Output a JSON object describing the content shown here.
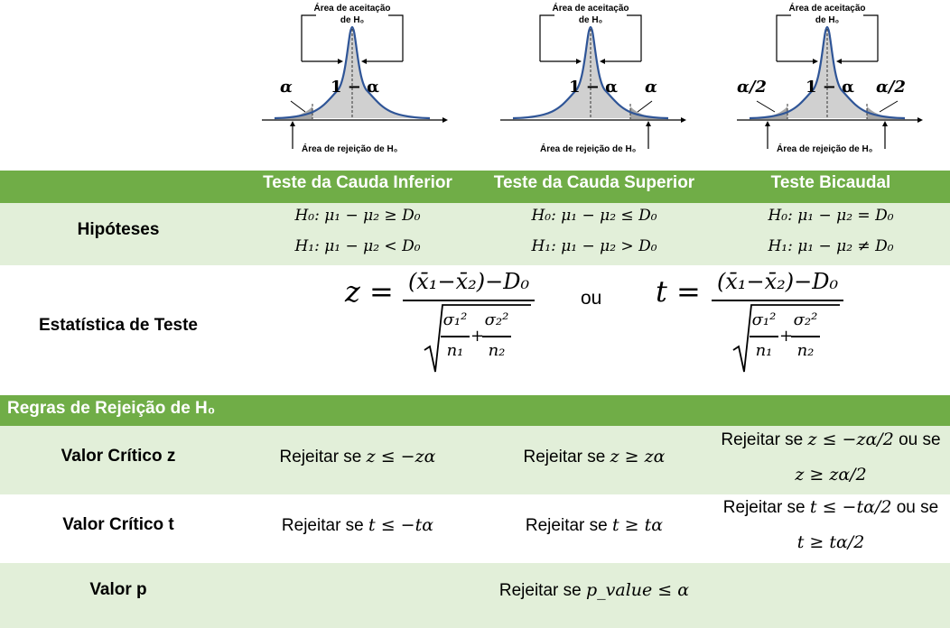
{
  "figures": [
    {
      "acceptance_label_line1": "Área de aceitação",
      "acceptance_label_line2": "de H₀",
      "rejection_label": "Área de rejeição de H₀",
      "left_tail": "α",
      "center": "1 − α",
      "right_tail": ""
    },
    {
      "acceptance_label_line1": "Área de aceitação",
      "acceptance_label_line2": "de H₀",
      "rejection_label": "Área de rejeição de H₀",
      "left_tail": "",
      "center": "1 − α",
      "right_tail": "α"
    },
    {
      "acceptance_label_line1": "Área de aceitação",
      "acceptance_label_line2": "de H₀",
      "rejection_label": "Área de rejeição de H₀",
      "left_tail": "α/2",
      "center": "1 − α",
      "right_tail": "α/2"
    }
  ],
  "colors": {
    "header_green": "#70ad47",
    "row_light_green": "#e2efd9",
    "curve_blue": "#2f5597",
    "shade_gray": "#d0d0d0",
    "shade_dark": "#a6a6a6"
  },
  "header": {
    "col1": "Teste da Cauda Inferior",
    "col2": "Teste da Cauda Superior",
    "col3": "Teste Bicaudal"
  },
  "hypotheses": {
    "label": "Hipóteses",
    "lower": {
      "h0": "H₀: μ₁ − μ₂ ≥ D₀",
      "h1": "H₁: μ₁ − μ₂ < D₀"
    },
    "upper": {
      "h0": "H₀: μ₁ − μ₂ ≤ D₀",
      "h1": "H₁: μ₁ − μ₂ > D₀"
    },
    "two": {
      "h0": "H₀: μ₁ − μ₂ = D₀",
      "h1": "H₁: μ₁ − μ₂ ≠ D₀"
    }
  },
  "test_statistic": {
    "label": "Estatística de Teste",
    "z_symbol": "z =",
    "t_symbol": "t =",
    "numerator": "(x̄₁−x̄₂)−D₀",
    "term1_num": "σ₁²",
    "term1_den": "n₁",
    "plus": "+",
    "term2_num": "σ₂²",
    "term2_den": "n₂",
    "or": "ou"
  },
  "rules_header": "Regras de Rejeição de H₀",
  "critical_z": {
    "label": "Valor Crítico z",
    "lower_prefix": "Rejeitar se ",
    "lower_expr": "z ≤ −zα",
    "upper_prefix": "Rejeitar se ",
    "upper_expr": "z ≥ zα",
    "two_prefix": "Rejeitar se ",
    "two_expr1": "z ≤ −zα/2",
    "two_or": " ou se",
    "two_expr2": "z ≥ zα/2"
  },
  "critical_t": {
    "label": "Valor Crítico t",
    "lower_prefix": "Rejeitar se ",
    "lower_expr": "t ≤ −tα",
    "upper_prefix": "Rejeitar se ",
    "upper_expr": "t ≥ tα",
    "two_prefix": "Rejeitar se ",
    "two_expr1": "t ≤ −tα/2",
    "two_or": " ou se",
    "two_expr2": "t ≥ tα/2"
  },
  "p_value": {
    "label": "Valor p",
    "prefix": "Rejeitar se ",
    "expr": "p_value ≤ α"
  }
}
